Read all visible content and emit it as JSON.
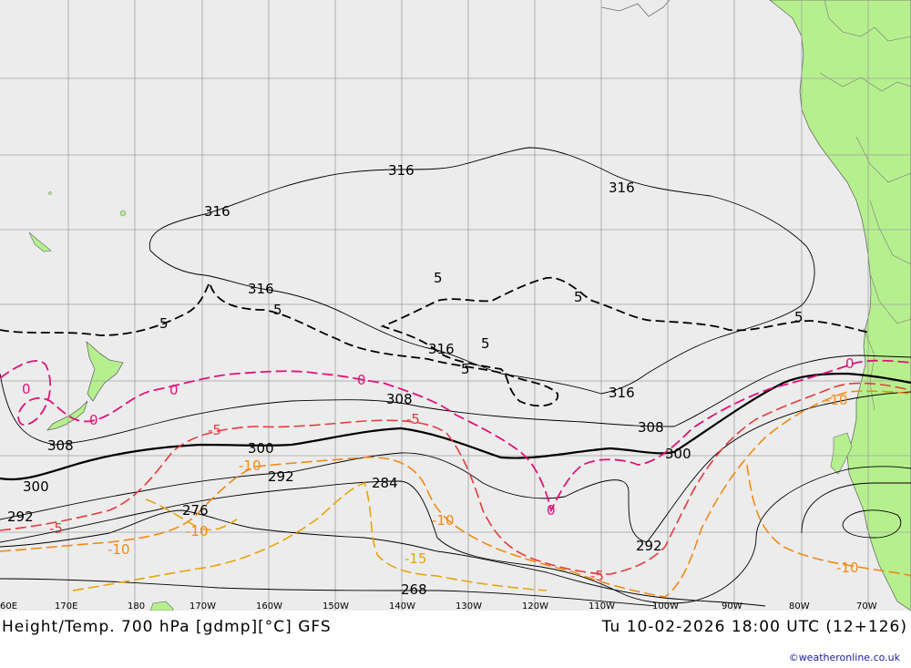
{
  "title": {
    "left": "Height/Temp. 700 hPa [gdmp][°C] GFS",
    "right": "Tu 10-02-2026 18:00 UTC (12+126)"
  },
  "credit": "©weatheronline.co.uk",
  "longitude_labels": [
    "60E",
    "170E",
    "180",
    "170W",
    "160W",
    "150W",
    "140W",
    "130W",
    "120W",
    "110W",
    "100W",
    "90W",
    "80W",
    "70W"
  ],
  "height_labels": [
    "316",
    "316",
    "316",
    "316",
    "316",
    "316",
    "308",
    "308",
    "308",
    "300",
    "300",
    "300",
    "292",
    "292",
    "292",
    "284",
    "276",
    "268"
  ],
  "temp_labels_neg5": [
    "5",
    "5",
    "5",
    "5",
    "5",
    "5",
    "5"
  ],
  "temp_labels_zero": [
    "0",
    "0",
    "0",
    "0",
    "0",
    "0"
  ],
  "temp_labels_minus5": [
    "-5",
    "-5",
    "-5",
    "-5"
  ],
  "temp_labels_minus10": [
    "-10",
    "-10",
    "-10",
    "-10",
    "-10",
    "-10"
  ],
  "temp_labels_minus15": [
    "-15"
  ],
  "colors": {
    "ocean": "#ececec",
    "land": "#b6f08e",
    "grid": "#a0a0a0",
    "height_contour": "#000000",
    "temp_5": "#000000",
    "temp_0": "#e0127a",
    "temp_minus5": "#e03c3c",
    "temp_minus10": "#f08a14",
    "temp_minus15": "#e6a50a"
  }
}
